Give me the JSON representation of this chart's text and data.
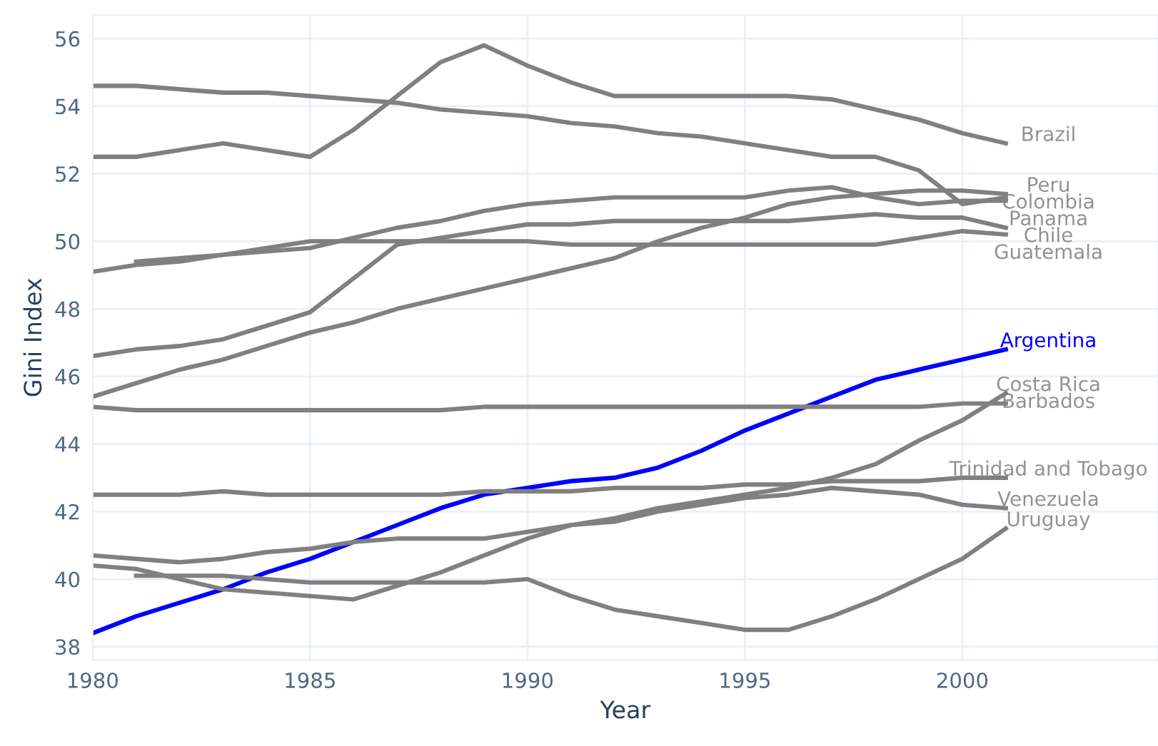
{
  "chart_data": {
    "type": "line",
    "xlabel": "Year",
    "ylabel": "Gini Index",
    "x": [
      1980,
      1981,
      1982,
      1983,
      1984,
      1985,
      1986,
      1987,
      1988,
      1989,
      1990,
      1991,
      1992,
      1993,
      1994,
      1995,
      1996,
      1997,
      1998,
      1999,
      2000,
      2001
    ],
    "xlim": [
      1980,
      2004.5
    ],
    "xticks": [
      1980,
      1985,
      1990,
      1995,
      2000
    ],
    "ylim": [
      37.6,
      56.7
    ],
    "yticks": [
      38,
      40,
      42,
      44,
      46,
      48,
      50,
      52,
      54,
      56
    ],
    "grid": true,
    "legend": false,
    "marker": "none",
    "line_style": "solid",
    "series": [
      {
        "name": "Brazil",
        "color": "#808080",
        "values": [
          52.5,
          52.5,
          52.7,
          52.9,
          52.7,
          52.5,
          53.3,
          54.3,
          55.3,
          55.8,
          55.2,
          54.7,
          54.3,
          54.3,
          54.3,
          54.3,
          54.3,
          54.2,
          53.9,
          53.6,
          53.2,
          52.9
        ]
      },
      {
        "name": "Peru",
        "color": "#808080",
        "values": [
          45.4,
          45.8,
          46.2,
          46.5,
          46.9,
          47.3,
          47.6,
          48.0,
          48.3,
          48.6,
          48.9,
          49.2,
          49.5,
          50.0,
          50.4,
          50.7,
          51.1,
          51.3,
          51.4,
          51.5,
          51.5,
          51.4
        ]
      },
      {
        "name": "Colombia",
        "color": "#808080",
        "values": [
          54.6,
          54.6,
          54.5,
          54.4,
          54.4,
          54.3,
          54.2,
          54.1,
          53.9,
          53.8,
          53.7,
          53.5,
          53.4,
          53.2,
          53.1,
          52.9,
          52.7,
          52.5,
          52.5,
          52.1,
          51.1,
          51.3
        ]
      },
      {
        "name": "Panama",
        "color": "#808080",
        "values": [
          49.1,
          49.3,
          49.4,
          49.6,
          49.7,
          49.8,
          50.1,
          50.4,
          50.6,
          50.9,
          51.1,
          51.2,
          51.3,
          51.3,
          51.3,
          51.3,
          51.5,
          51.6,
          51.3,
          51.1,
          51.2,
          51.2
        ]
      },
      {
        "name": "Chile",
        "color": "#808080",
        "values": [
          46.6,
          46.8,
          46.9,
          47.1,
          47.5,
          47.9,
          48.9,
          49.9,
          50.1,
          50.3,
          50.5,
          50.5,
          50.6,
          50.6,
          50.6,
          50.6,
          50.6,
          50.7,
          50.8,
          50.7,
          50.7,
          50.4
        ]
      },
      {
        "name": "Guatemala",
        "color": "#808080",
        "values": [
          null,
          49.4,
          49.5,
          49.6,
          49.8,
          50.0,
          50.0,
          50.0,
          50.0,
          50.0,
          50.0,
          49.9,
          49.9,
          49.9,
          49.9,
          49.9,
          49.9,
          49.9,
          49.9,
          50.1,
          50.3,
          50.2
        ]
      },
      {
        "name": "Argentina",
        "color": "#0000ff",
        "values": [
          38.4,
          38.9,
          39.3,
          39.7,
          40.2,
          40.6,
          41.1,
          41.6,
          42.1,
          42.5,
          42.7,
          42.9,
          43.0,
          43.3,
          43.8,
          44.4,
          44.9,
          45.4,
          45.9,
          46.2,
          46.5,
          46.8
        ]
      },
      {
        "name": "Costa Rica",
        "color": "#808080",
        "values": [
          40.7,
          40.6,
          40.5,
          40.6,
          40.8,
          40.9,
          41.1,
          41.2,
          41.2,
          41.2,
          41.4,
          41.6,
          41.8,
          42.1,
          42.3,
          42.5,
          42.7,
          43.0,
          43.4,
          44.1,
          44.7,
          45.5
        ]
      },
      {
        "name": "Barbados",
        "color": "#808080",
        "values": [
          45.1,
          45.0,
          45.0,
          45.0,
          45.0,
          45.0,
          45.0,
          45.0,
          45.0,
          45.1,
          45.1,
          45.1,
          45.1,
          45.1,
          45.1,
          45.1,
          45.1,
          45.1,
          45.1,
          45.1,
          45.2,
          45.2
        ]
      },
      {
        "name": "Trinidad and Tobago",
        "color": "#808080",
        "values": [
          42.5,
          42.5,
          42.5,
          42.6,
          42.5,
          42.5,
          42.5,
          42.5,
          42.5,
          42.6,
          42.6,
          42.6,
          42.7,
          42.7,
          42.7,
          42.8,
          42.8,
          42.9,
          42.9,
          42.9,
          43.0,
          43.0
        ]
      },
      {
        "name": "Venezuela",
        "color": "#808080",
        "values": [
          40.4,
          40.3,
          40.0,
          39.7,
          39.6,
          39.5,
          39.4,
          39.8,
          40.2,
          40.7,
          41.2,
          41.6,
          41.7,
          42.0,
          42.2,
          42.4,
          42.5,
          42.7,
          42.6,
          42.5,
          42.2,
          42.1
        ]
      },
      {
        "name": "Uruguay",
        "color": "#808080",
        "values": [
          null,
          40.1,
          40.1,
          40.1,
          40.0,
          39.9,
          39.9,
          39.9,
          39.9,
          39.9,
          40.0,
          39.5,
          39.1,
          38.9,
          38.7,
          38.5,
          38.5,
          38.9,
          39.4,
          40.0,
          40.6,
          41.5
        ]
      }
    ]
  }
}
